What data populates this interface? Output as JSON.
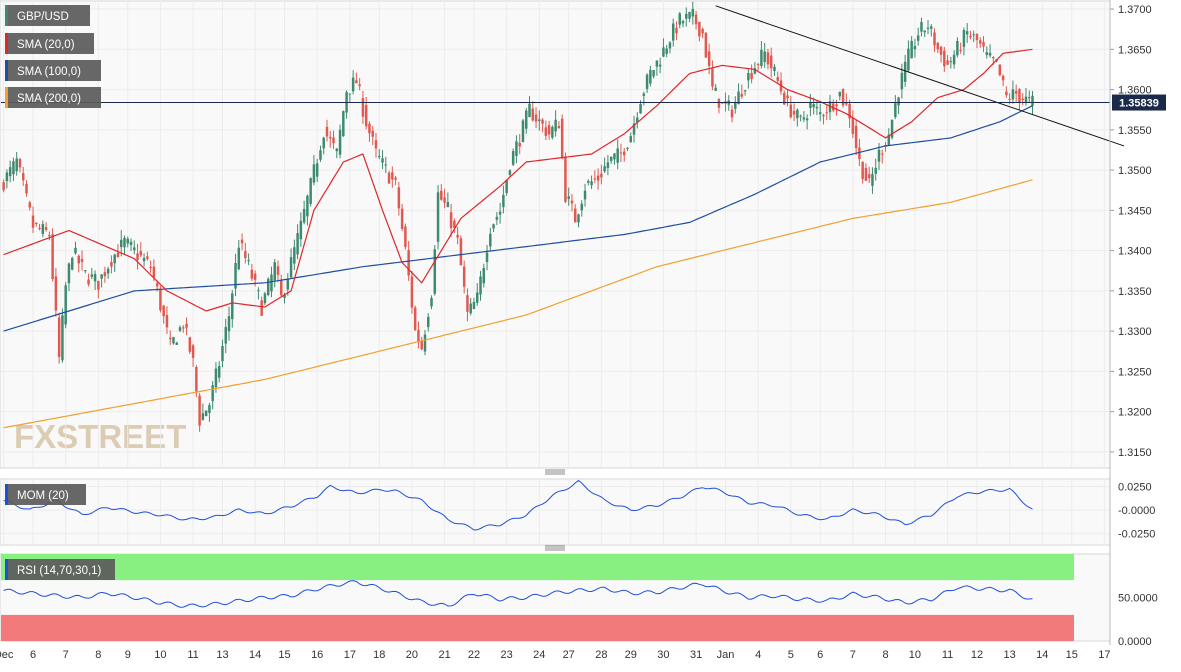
{
  "colors": {
    "price_up": "#3e8a6e",
    "price_down": "#e0584f",
    "sma20": "#e0262a",
    "sma100": "#1f4fa0",
    "sma200": "#f0a030",
    "mom_line": "#1f4fd8",
    "rsi_line": "#1f4fd8",
    "rsi_overbought": "#88f080",
    "rsi_oversold": "#f27a7a",
    "last_price": "#1b2a4a",
    "trendline": "#111111"
  },
  "icons": [
    "panel-resize-handle-icon"
  ],
  "watermark": "FXSTREET",
  "chart_data": [
    {
      "type": "candlestick",
      "panel": "price",
      "title": "GBP/USD",
      "legend": [
        {
          "label": "GBP/USD",
          "color": "#3e8a6e"
        },
        {
          "label": "SMA (20,0)",
          "color": "#e0262a"
        },
        {
          "label": "SMA (100,0)",
          "color": "#1f4fa0"
        },
        {
          "label": "SMA (200,0)",
          "color": "#f0a030"
        }
      ],
      "y_ticks": [
        "1.3700",
        "1.3650",
        "1.3600",
        "1.3550",
        "1.3500",
        "1.3450",
        "1.3400",
        "1.3350",
        "1.3300",
        "1.3250",
        "1.3200",
        "1.3150"
      ],
      "ylim": [
        1.313,
        1.371
      ],
      "last_price": "1.35839",
      "x_ticks": [
        "Dec",
        "6",
        "7",
        "8",
        "9",
        "10",
        "11",
        "13",
        "14",
        "15",
        "16",
        "17",
        "18",
        "20",
        "21",
        "22",
        "23",
        "24",
        "27",
        "28",
        "29",
        "30",
        "31",
        "Jan",
        "4",
        "5",
        "6",
        "7",
        "8",
        "10",
        "11",
        "12",
        "13",
        "14",
        "15",
        "17"
      ],
      "x_tick_slots": [
        0,
        9,
        19,
        29,
        38,
        48,
        58,
        67,
        77,
        86,
        96,
        106,
        115,
        125,
        135,
        144,
        154,
        164,
        173,
        183,
        192,
        202,
        212,
        221,
        231,
        241,
        250,
        260,
        270,
        279,
        289,
        298,
        308,
        318,
        327,
        337
      ],
      "candle_count": 338,
      "price_keypoints": [
        [
          0,
          1.348
        ],
        [
          5,
          1.351
        ],
        [
          10,
          1.343
        ],
        [
          15,
          1.342
        ],
        [
          18,
          1.3265
        ],
        [
          20,
          1.3355
        ],
        [
          22,
          1.34
        ],
        [
          26,
          1.337
        ],
        [
          30,
          1.336
        ],
        [
          34,
          1.339
        ],
        [
          38,
          1.341
        ],
        [
          42,
          1.3395
        ],
        [
          46,
          1.338
        ],
        [
          48,
          1.335
        ],
        [
          52,
          1.328
        ],
        [
          56,
          1.331
        ],
        [
          59,
          1.326
        ],
        [
          61,
          1.319
        ],
        [
          64,
          1.321
        ],
        [
          67,
          1.326
        ],
        [
          70,
          1.332
        ],
        [
          73,
          1.341
        ],
        [
          76,
          1.338
        ],
        [
          80,
          1.333
        ],
        [
          84,
          1.338
        ],
        [
          86,
          1.334
        ],
        [
          88,
          1.337
        ],
        [
          92,
          1.343
        ],
        [
          95,
          1.348
        ],
        [
          99,
          1.355
        ],
        [
          103,
          1.352
        ],
        [
          106,
          1.36
        ],
        [
          109,
          1.361
        ],
        [
          112,
          1.356
        ],
        [
          115,
          1.352
        ],
        [
          118,
          1.35
        ],
        [
          121,
          1.348
        ],
        [
          124,
          1.34
        ],
        [
          127,
          1.33
        ],
        [
          129,
          1.328
        ],
        [
          132,
          1.335
        ],
        [
          134,
          1.347
        ],
        [
          137,
          1.345
        ],
        [
          140,
          1.341
        ],
        [
          143,
          1.332
        ],
        [
          146,
          1.334
        ],
        [
          150,
          1.343
        ],
        [
          153,
          1.345
        ],
        [
          156,
          1.351
        ],
        [
          159,
          1.354
        ],
        [
          162,
          1.3575
        ],
        [
          165,
          1.356
        ],
        [
          168,
          1.3545
        ],
        [
          171,
          1.356
        ],
        [
          173,
          1.347
        ],
        [
          176,
          1.344
        ],
        [
          179,
          1.348
        ],
        [
          183,
          1.349
        ],
        [
          186,
          1.351
        ],
        [
          190,
          1.352
        ],
        [
          193,
          1.3545
        ],
        [
          196,
          1.359
        ],
        [
          199,
          1.362
        ],
        [
          202,
          1.364
        ],
        [
          205,
          1.3665
        ],
        [
          208,
          1.3685
        ],
        [
          212,
          1.369
        ],
        [
          215,
          1.367
        ],
        [
          218,
          1.36
        ],
        [
          221,
          1.358
        ],
        [
          224,
          1.3575
        ],
        [
          228,
          1.361
        ],
        [
          231,
          1.363
        ],
        [
          234,
          1.3645
        ],
        [
          237,
          1.362
        ],
        [
          241,
          1.358
        ],
        [
          245,
          1.356
        ],
        [
          248,
          1.358
        ],
        [
          251,
          1.357
        ],
        [
          254,
          1.358
        ],
        [
          257,
          1.3595
        ],
        [
          260,
          1.357
        ],
        [
          263,
          1.351
        ],
        [
          266,
          1.348
        ],
        [
          269,
          1.352
        ],
        [
          272,
          1.3545
        ],
        [
          275,
          1.36
        ],
        [
          278,
          1.364
        ],
        [
          281,
          1.367
        ],
        [
          284,
          1.368
        ],
        [
          287,
          1.365
        ],
        [
          290,
          1.363
        ],
        [
          293,
          1.365
        ],
        [
          296,
          1.367
        ],
        [
          299,
          1.366
        ],
        [
          302,
          1.364
        ],
        [
          305,
          1.363
        ],
        [
          308,
          1.359
        ],
        [
          311,
          1.3595
        ],
        [
          315,
          1.3584
        ]
      ],
      "sma20_keypoints": [
        [
          0,
          1.3395
        ],
        [
          20,
          1.3425
        ],
        [
          40,
          1.339
        ],
        [
          50,
          1.335
        ],
        [
          62,
          1.3325
        ],
        [
          70,
          1.3335
        ],
        [
          80,
          1.333
        ],
        [
          88,
          1.335
        ],
        [
          95,
          1.345
        ],
        [
          104,
          1.351
        ],
        [
          110,
          1.352
        ],
        [
          116,
          1.345
        ],
        [
          122,
          1.3385
        ],
        [
          128,
          1.336
        ],
        [
          134,
          1.34
        ],
        [
          140,
          1.344
        ],
        [
          146,
          1.346
        ],
        [
          152,
          1.348
        ],
        [
          160,
          1.351
        ],
        [
          170,
          1.3515
        ],
        [
          180,
          1.352
        ],
        [
          190,
          1.3545
        ],
        [
          200,
          1.358
        ],
        [
          210,
          1.362
        ],
        [
          220,
          1.363
        ],
        [
          230,
          1.3625
        ],
        [
          240,
          1.36
        ],
        [
          250,
          1.3585
        ],
        [
          258,
          1.357
        ],
        [
          264,
          1.3555
        ],
        [
          270,
          1.354
        ],
        [
          278,
          1.356
        ],
        [
          286,
          1.359
        ],
        [
          294,
          1.36
        ],
        [
          300,
          1.362
        ],
        [
          306,
          1.3645
        ],
        [
          315,
          1.365
        ]
      ],
      "sma100_keypoints": [
        [
          0,
          1.33
        ],
        [
          40,
          1.335
        ],
        [
          80,
          1.336
        ],
        [
          110,
          1.338
        ],
        [
          140,
          1.3395
        ],
        [
          170,
          1.341
        ],
        [
          190,
          1.342
        ],
        [
          210,
          1.3435
        ],
        [
          230,
          1.347
        ],
        [
          250,
          1.351
        ],
        [
          270,
          1.353
        ],
        [
          290,
          1.354
        ],
        [
          305,
          1.356
        ],
        [
          315,
          1.358
        ]
      ],
      "sma200_keypoints": [
        [
          0,
          1.318
        ],
        [
          40,
          1.321
        ],
        [
          80,
          1.324
        ],
        [
          120,
          1.328
        ],
        [
          160,
          1.332
        ],
        [
          200,
          1.338
        ],
        [
          230,
          1.341
        ],
        [
          260,
          1.344
        ],
        [
          290,
          1.346
        ],
        [
          315,
          1.3488
        ]
      ],
      "trendline": [
        [
          218,
          1.3704
        ],
        [
          343,
          1.353
        ]
      ]
    },
    {
      "type": "line",
      "panel": "momentum",
      "title": "MOM (20)",
      "legend": [
        {
          "label": "MOM (20)",
          "color": "#1f4fd8"
        }
      ],
      "y_ticks": [
        "0.0250",
        "-0.0000",
        "-0.0250"
      ],
      "ylim": [
        -0.037,
        0.033
      ],
      "x": [
        0,
        8,
        16,
        24,
        32,
        40,
        48,
        56,
        64,
        72,
        80,
        88,
        96,
        100,
        108,
        116,
        120,
        128,
        136,
        144,
        152,
        160,
        168,
        176,
        184,
        192,
        200,
        208,
        214,
        220,
        228,
        236,
        244,
        252,
        260,
        268,
        276,
        284,
        292,
        300,
        308,
        315
      ],
      "values": [
        0.01,
        0.0,
        0.01,
        -0.005,
        0.003,
        -0.002,
        -0.005,
        -0.01,
        -0.008,
        0.0,
        -0.004,
        0.004,
        0.015,
        0.025,
        0.018,
        0.022,
        0.02,
        0.01,
        -0.01,
        -0.02,
        -0.015,
        -0.005,
        0.015,
        0.03,
        0.01,
        0.0,
        0.005,
        0.015,
        0.025,
        0.02,
        0.008,
        0.005,
        -0.005,
        -0.01,
        0.0,
        -0.005,
        -0.015,
        -0.005,
        0.015,
        0.02,
        0.022,
        0.0
      ]
    },
    {
      "type": "line",
      "panel": "rsi",
      "title": "RSI (14,70,30,1)",
      "legend": [
        {
          "label": "RSI (14,70,30,1)",
          "color": "#1f4fd8"
        }
      ],
      "y_ticks": [
        "50.0000",
        "0.0000"
      ],
      "ylim": [
        0,
        100
      ],
      "overbought": 70,
      "oversold": 30,
      "x": [
        0,
        8,
        16,
        24,
        32,
        40,
        48,
        56,
        64,
        72,
        80,
        88,
        96,
        104,
        108,
        116,
        120,
        128,
        136,
        144,
        152,
        160,
        168,
        176,
        184,
        192,
        200,
        208,
        214,
        220,
        228,
        236,
        244,
        252,
        260,
        268,
        276,
        284,
        292,
        300,
        308,
        315
      ],
      "values": [
        58,
        55,
        52,
        50,
        55,
        50,
        44,
        40,
        42,
        46,
        50,
        52,
        60,
        66,
        68,
        60,
        55,
        45,
        40,
        55,
        48,
        50,
        55,
        58,
        60,
        55,
        56,
        62,
        66,
        58,
        50,
        52,
        48,
        46,
        54,
        50,
        44,
        48,
        62,
        60,
        58,
        47
      ]
    }
  ]
}
